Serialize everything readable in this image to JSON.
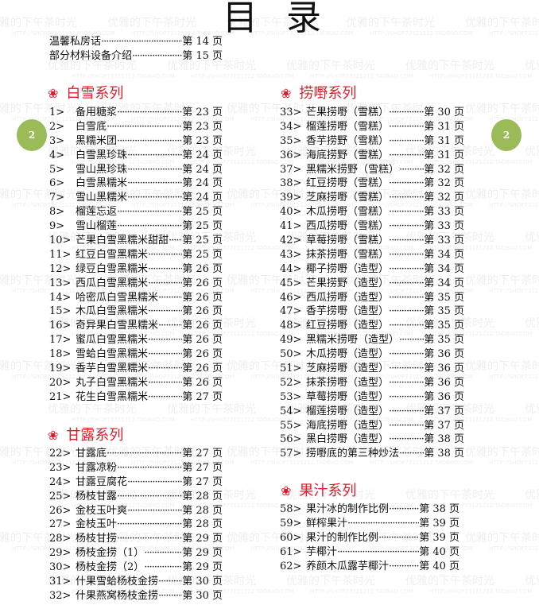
{
  "title": "目录",
  "page_number": "2",
  "watermark": {
    "text": "优雅的下午茶时光",
    "url": "HTTP://SHOP73121212.TAOBAO.COM"
  },
  "accent_color": "#e21b2c",
  "badge_color": "#9bbb59",
  "intro": [
    {
      "name": "温馨私房话",
      "page": "第 14 页"
    },
    {
      "name": "部分材料设备介绍",
      "page": "第 15 页"
    }
  ],
  "sections": [
    {
      "title": "白雪系列",
      "icon": "flower-icon",
      "items": [
        {
          "num": "1>",
          "name": "备用糖浆",
          "page": "第 23 页"
        },
        {
          "num": "2>",
          "name": "白雪底",
          "page": "第 23 页"
        },
        {
          "num": "3>",
          "name": "黑糯米团",
          "page": "第 23 页"
        },
        {
          "num": "4>",
          "name": "白雪黑珍珠",
          "page": "第 24 页"
        },
        {
          "num": "5>",
          "name": "雪山黑珍珠",
          "page": "第 24 页"
        },
        {
          "num": "6>",
          "name": "白雪黑糯米",
          "page": "第 24 页"
        },
        {
          "num": "7>",
          "name": "雪山黑糯米",
          "page": "第 24 页"
        },
        {
          "num": "8>",
          "name": "榴莲忘返",
          "page": "第 25 页"
        },
        {
          "num": "9>",
          "name": "雪山榴莲",
          "page": "第 25 页"
        },
        {
          "num": "10>",
          "name": "芒果白雪黑糯米甜甜",
          "page": "第 25 页"
        },
        {
          "num": "11>",
          "name": "红豆白雪黑糯米",
          "page": "第 25 页"
        },
        {
          "num": "12>",
          "name": "绿豆白雪黑糯米",
          "page": "第 26 页"
        },
        {
          "num": "13>",
          "name": "西瓜白雪黑糯米",
          "page": "第 26 页"
        },
        {
          "num": "14>",
          "name": "哈密瓜白雪黑糯米",
          "page": "第 26 页"
        },
        {
          "num": "15>",
          "name": "木瓜白雪黑糯米",
          "page": "第 26 页"
        },
        {
          "num": "16>",
          "name": "奇异果白雪黑糯米",
          "page": "第 26 页"
        },
        {
          "num": "17>",
          "name": "蜜瓜白雪黑糯米",
          "page": "第 26 页"
        },
        {
          "num": "18>",
          "name": "雪蛤白雪黑糯米",
          "page": "第 26 页"
        },
        {
          "num": "19>",
          "name": "香芋白雪黑糯米",
          "page": "第 26 页"
        },
        {
          "num": "20>",
          "name": "丸子白雪黑糯米",
          "page": "第 26 页"
        },
        {
          "num": "21>",
          "name": "花生白雪黑糯米",
          "page": "第 27 页"
        }
      ]
    },
    {
      "title": "甘露系列",
      "icon": "flower-icon",
      "items": [
        {
          "num": "22>",
          "name": "甘露底",
          "page": "第 27 页"
        },
        {
          "num": "23>",
          "name": "甘露凉粉",
          "page": "第 27 页"
        },
        {
          "num": "24>",
          "name": "甘露豆腐花",
          "page": "第 27 页"
        },
        {
          "num": "25>",
          "name": "杨枝甘露",
          "page": "第 28 页"
        },
        {
          "num": "26>",
          "name": "金枝玉叶爽",
          "page": "第 28 页"
        },
        {
          "num": "27>",
          "name": "金枝玉叶",
          "page": "第 28 页"
        },
        {
          "num": "28>",
          "name": "杨枝甘捞",
          "page": "第 29 页"
        },
        {
          "num": "29>",
          "name": "杨枝金捞（1）",
          "page": "第 29 页"
        },
        {
          "num": "30>",
          "name": "杨枝金捞（2）",
          "page": "第 29 页"
        },
        {
          "num": "31>",
          "name": "什果雪蛤杨枝金捞",
          "page": "第 30 页"
        },
        {
          "num": "32>",
          "name": "什果燕窝杨枝金捞",
          "page": "第 30 页"
        }
      ]
    },
    {
      "title": "捞嘢系列",
      "icon": "flower-icon",
      "items": [
        {
          "num": "33>",
          "name": "芒果捞嘢（雪糕）",
          "page": "第 30 页"
        },
        {
          "num": "34>",
          "name": "榴莲捞嘢（雪糕）",
          "page": "第 31 页"
        },
        {
          "num": "35>",
          "name": "香芋捞野（雪糕）",
          "page": "第 31 页"
        },
        {
          "num": "36>",
          "name": "海底捞野（雪糕）",
          "page": "第 31 页"
        },
        {
          "num": "37>",
          "name": "黑糯米捞野（雪糕）",
          "page": "第 32 页"
        },
        {
          "num": "38>",
          "name": "红豆捞嘢（雪糕）",
          "page": "第 32 页"
        },
        {
          "num": "39>",
          "name": "芝麻捞嘢（雪糕）",
          "page": "第 32 页"
        },
        {
          "num": "40>",
          "name": "木瓜捞嘢（雪糕）",
          "page": "第 33 页"
        },
        {
          "num": "41>",
          "name": "西瓜捞嘢（雪糕）",
          "page": "第 33 页"
        },
        {
          "num": "42>",
          "name": "草莓捞嘢（雪糕）",
          "page": "第 33 页"
        },
        {
          "num": "43>",
          "name": "抹茶捞嘢（雪糕）",
          "page": "第 34 页"
        },
        {
          "num": "44>",
          "name": "椰子捞嘢（造型）",
          "page": "第 34 页"
        },
        {
          "num": "45>",
          "name": "芒果捞野（造型）",
          "page": "第 34 页"
        },
        {
          "num": "46>",
          "name": "西瓜捞嘢（造型）",
          "page": "第 35 页"
        },
        {
          "num": "47>",
          "name": "香芋捞嘢（造型）",
          "page": "第 35 页"
        },
        {
          "num": "48>",
          "name": "红豆捞嘢（造型）",
          "page": "第 35 页"
        },
        {
          "num": "49>",
          "name": "黑糯米捞嘢（造型）",
          "page": "第 35 页"
        },
        {
          "num": "50>",
          "name": "木瓜捞嘢（造型）",
          "page": "第 36 页"
        },
        {
          "num": "51>",
          "name": "芝麻捞嘢（造型）",
          "page": "第 36 页"
        },
        {
          "num": "52>",
          "name": "抹茶捞嘢（造型）",
          "page": "第 36 页"
        },
        {
          "num": "53>",
          "name": "草莓捞嘢（造型）",
          "page": "第 36 页"
        },
        {
          "num": "54>",
          "name": "榴莲捞嘢（造型）",
          "page": "第 37 页"
        },
        {
          "num": "55>",
          "name": "海底捞嘢（造型）",
          "page": "第 37 页"
        },
        {
          "num": "56>",
          "name": "黑白捞嘢（造型）",
          "page": "第 38 页"
        },
        {
          "num": "57>",
          "name": "捞嘢底的第三种炒法",
          "page": "第 38 页"
        }
      ]
    },
    {
      "title": "果汁系列",
      "icon": "flower-icon",
      "items": [
        {
          "num": "58>",
          "name": "果汁冰的制作比例",
          "page": "第 38 页"
        },
        {
          "num": "59>",
          "name": "鲜榨果汁",
          "page": "第 39 页"
        },
        {
          "num": "60>",
          "name": "果汁的制作比例",
          "page": "第 39 页"
        },
        {
          "num": "61>",
          "name": "芋椰汁",
          "page": "第 40 页"
        },
        {
          "num": "62>",
          "name": "养颜木瓜露芋椰汁",
          "page": "第 40 页"
        }
      ]
    }
  ]
}
